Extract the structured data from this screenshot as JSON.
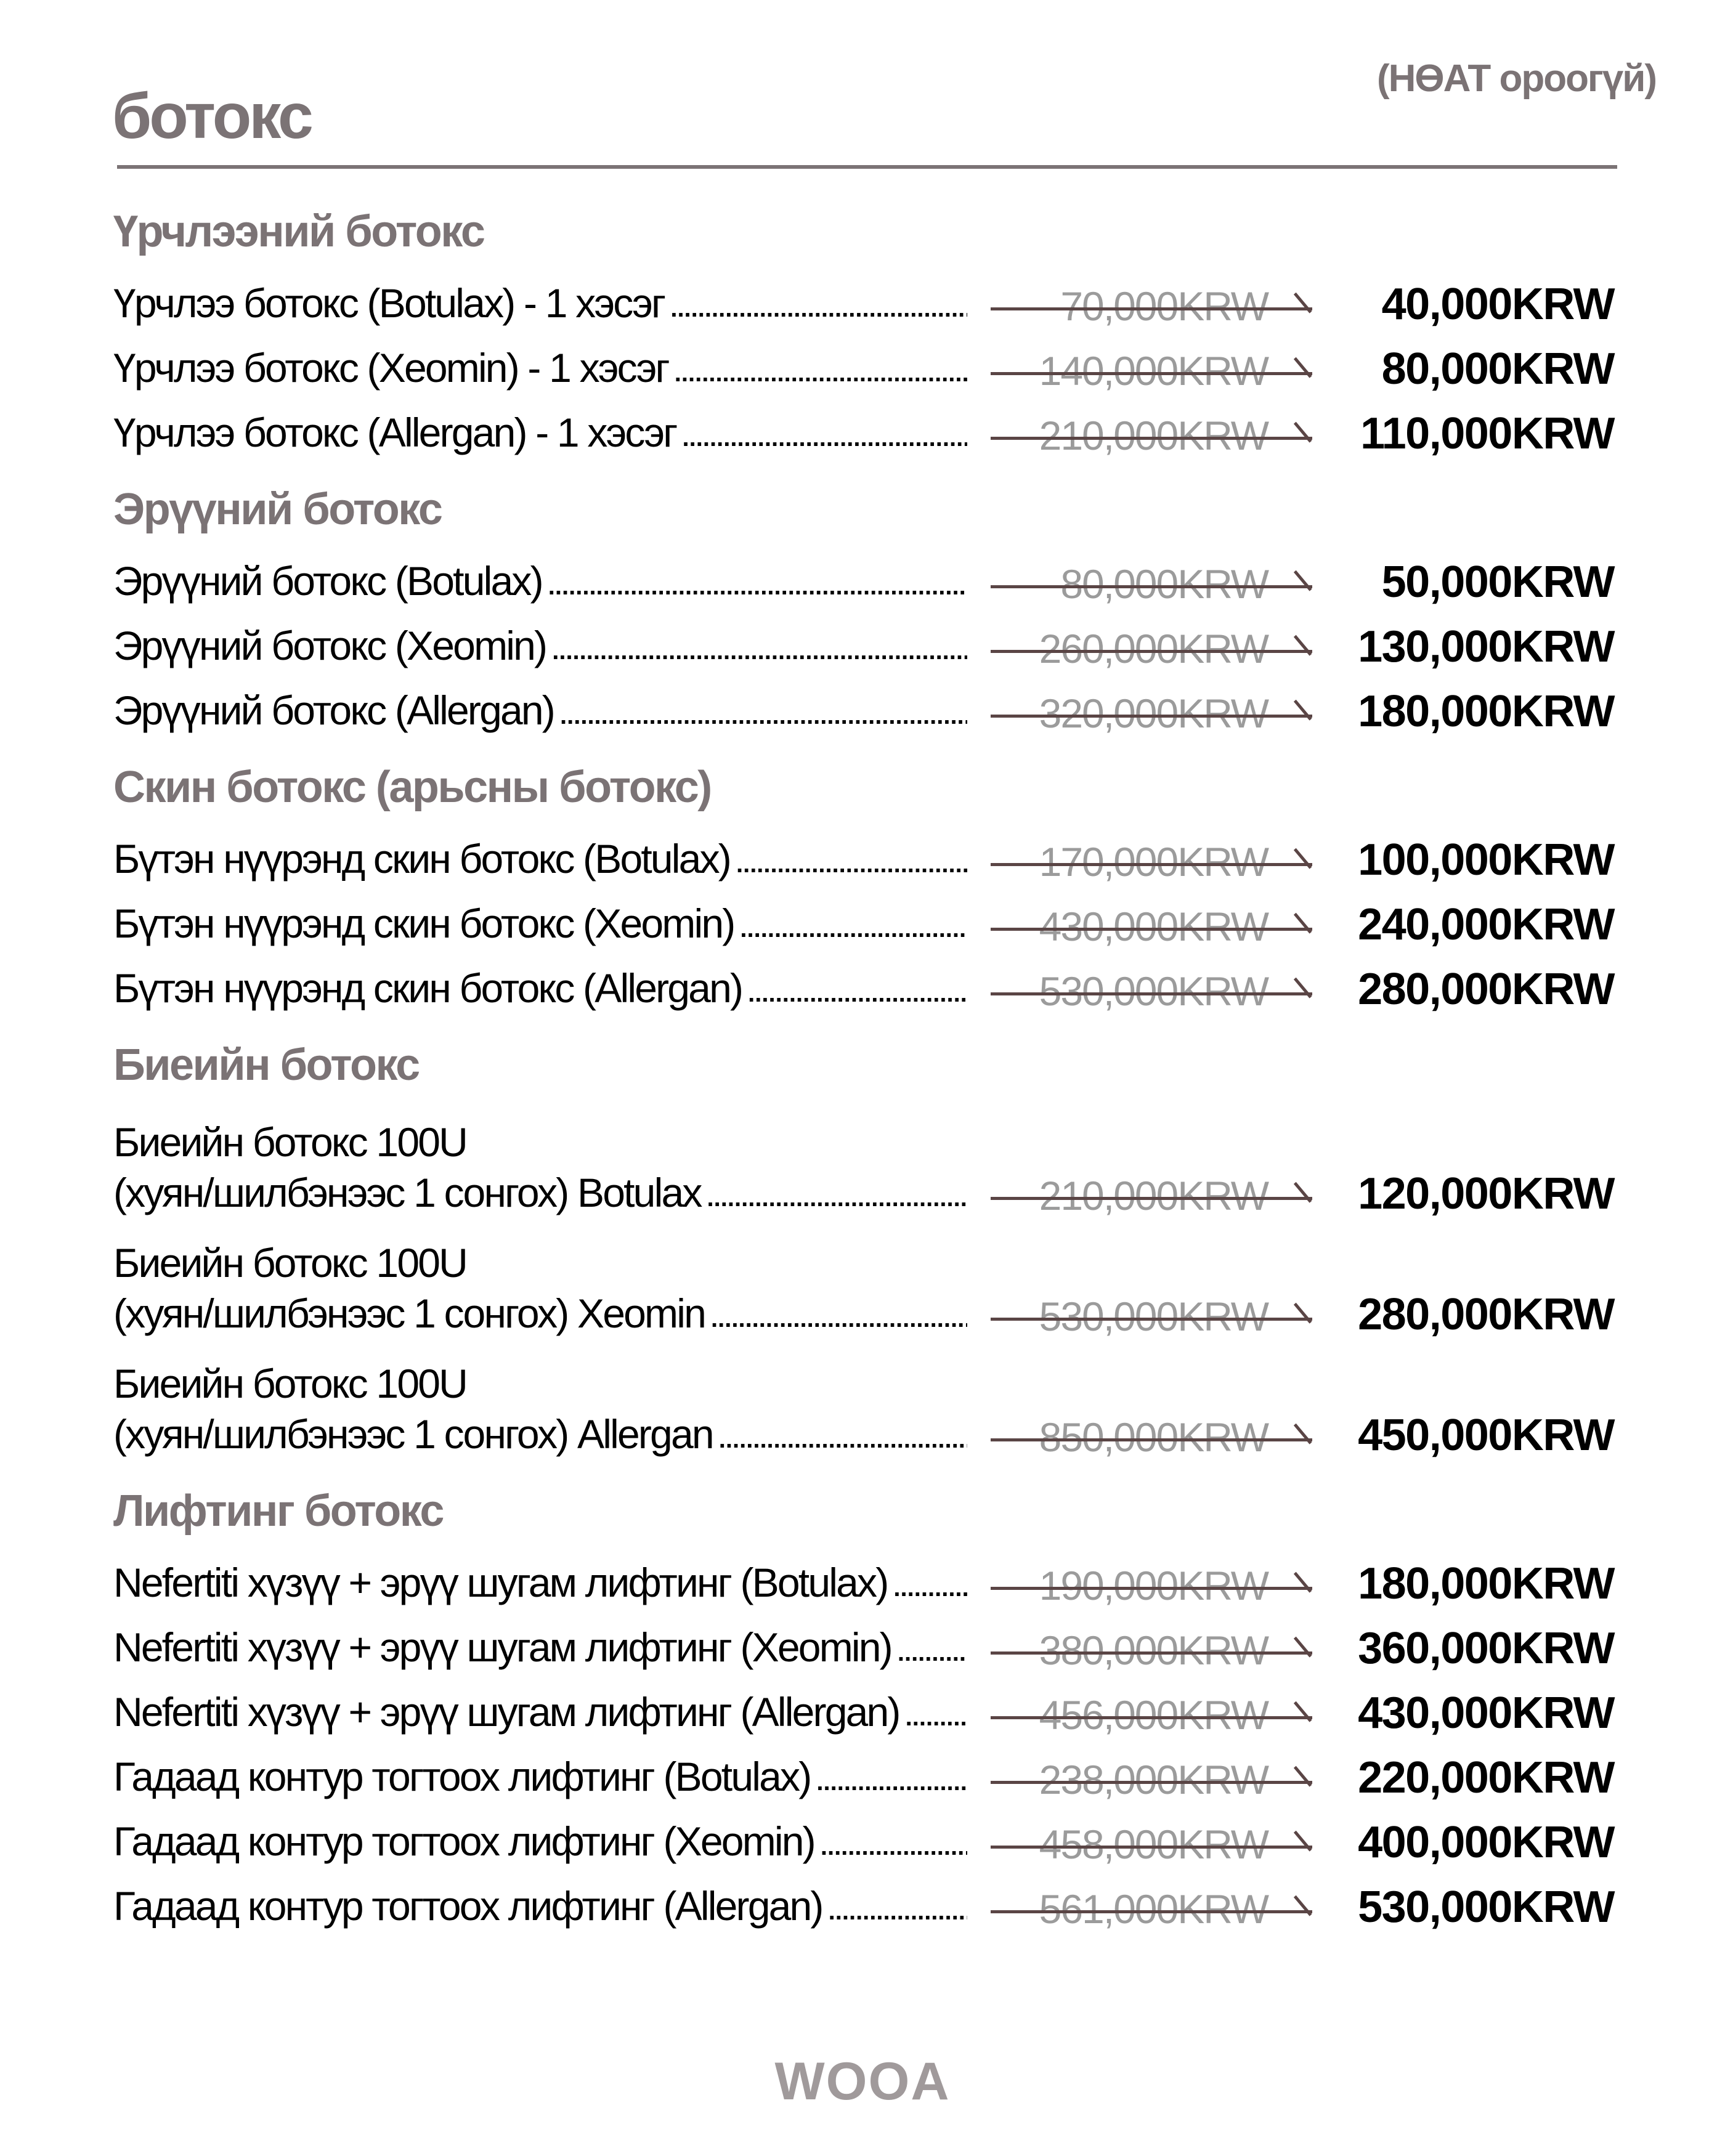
{
  "header": {
    "title": "ботокс",
    "vat_note": "(НӨАТ ороогүй)"
  },
  "colors": {
    "heading": "#7b7375",
    "old_price": "#9b9b9b",
    "strike": "#5a4545",
    "price": "#000000"
  },
  "sections": [
    {
      "title": "Үрчлээний ботокс",
      "items": [
        {
          "name": [
            "Үрчлээ ботокс (Botulax) - 1 хэсэг"
          ],
          "old_price": "70,000KRW",
          "price": "40,000KRW"
        },
        {
          "name": [
            "Үрчлээ ботокс (Xeomin) -  1 хэсэг"
          ],
          "old_price": "140,000KRW",
          "price": "80,000KRW"
        },
        {
          "name": [
            "Үрчлээ ботокс (Allergan) -  1 хэсэг"
          ],
          "old_price": "210,000KRW",
          "price": "110,000KRW"
        }
      ]
    },
    {
      "title": "Эрүүний ботокс",
      "items": [
        {
          "name": [
            "Эрүүний ботокс (Botulax)"
          ],
          "old_price": "80,000KRW",
          "price": "50,000KRW"
        },
        {
          "name": [
            "Эрүүний ботокс (Xeomin)"
          ],
          "old_price": "260,000KRW",
          "price": "130,000KRW"
        },
        {
          "name": [
            "Эрүүний ботокс (Allergan)"
          ],
          "old_price": "320,000KRW",
          "price": "180,000KRW"
        }
      ]
    },
    {
      "title": "Скин ботокс (арьсны ботокс)",
      "items": [
        {
          "name": [
            "Бүтэн нүүрэнд скин ботокс (Botulax)"
          ],
          "old_price": "170,000KRW",
          "price": "100,000KRW"
        },
        {
          "name": [
            "Бүтэн нүүрэнд скин ботокс (Xeomin)"
          ],
          "old_price": "430,000KRW",
          "price": "240,000KRW"
        },
        {
          "name": [
            "Бүтэн нүүрэнд скин ботокс (Allergan)"
          ],
          "old_price": "530,000KRW",
          "price": "280,000KRW"
        }
      ]
    },
    {
      "title": "Биеийн ботокс",
      "items": [
        {
          "name": [
            "Биеийн ботокс 100U",
            "(хуян/шилбэнээс 1 сонгох) Botulax"
          ],
          "old_price": "210,000KRW",
          "price": "120,000KRW"
        },
        {
          "name": [
            "Биеийн ботокс 100U",
            "(хуян/шилбэнээс 1 сонгох) Xeomin"
          ],
          "old_price": "530,000KRW",
          "price": "280,000KRW"
        },
        {
          "name": [
            "Биеийн ботокс 100U",
            "(хуян/шилбэнээс 1 сонгох) Allergan"
          ],
          "old_price": "850,000KRW",
          "price": "450,000KRW"
        }
      ]
    },
    {
      "title": "Лифтинг ботокс",
      "items": [
        {
          "name": [
            "Nefertiti хүзүү + эрүү шугам лифтинг (Botulax)"
          ],
          "old_price": "190,000KRW",
          "price": "180,000KRW"
        },
        {
          "name": [
            "Nefertiti хүзүү + эрүү шугам лифтинг (Xeomin)"
          ],
          "old_price": "380,000KRW",
          "price": "360,000KRW"
        },
        {
          "name": [
            "Nefertiti хүзүү + эрүү шугам лифтинг (Allergan)"
          ],
          "old_price": "456,000KRW",
          "price": "430,000KRW"
        },
        {
          "name": [
            "Гадаад контур тогтоох лифтинг (Botulax)"
          ],
          "old_price": "238,000KRW",
          "price": "220,000KRW"
        },
        {
          "name": [
            "Гадаад контур тогтоох лифтинг (Xeomin)"
          ],
          "old_price": "458,000KRW",
          "price": "400,000KRW"
        },
        {
          "name": [
            "Гадаад контур тогтоох лифтинг (Allergan)"
          ],
          "old_price": "561,000KRW",
          "price": "530,000KRW"
        }
      ]
    }
  ],
  "footer": {
    "logo": "WOOA"
  }
}
